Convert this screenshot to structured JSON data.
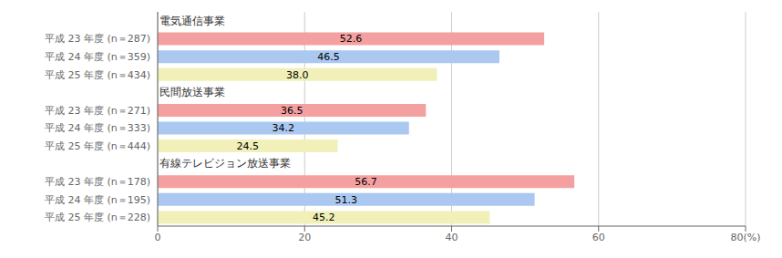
{
  "chart_data": {
    "type": "bar",
    "orientation": "horizontal",
    "groups": [
      {
        "label": "電気通信事業",
        "categories": [
          "平成 23 年度 (n＝287)",
          "平成 24 年度 (n＝359)",
          "平成 25 年度 (n＝434)"
        ],
        "values": [
          52.6,
          46.5,
          38.0
        ],
        "value_labels": [
          "52.6",
          "46.5",
          "38.0"
        ],
        "colors": [
          "#f4a0a0",
          "#aac8f0",
          "#f0f0b8"
        ]
      },
      {
        "label": "民間放送事業",
        "categories": [
          "平成 23 年度 (n＝271)",
          "平成 24 年度 (n＝333)",
          "平成 25 年度 (n＝444)"
        ],
        "values": [
          36.5,
          34.2,
          24.5
        ],
        "value_labels": [
          "36.5",
          "34.2",
          "24.5"
        ],
        "colors": [
          "#f4a0a0",
          "#aac8f0",
          "#f0f0b8"
        ]
      },
      {
        "label": "有線テレビジョン放送事業",
        "categories": [
          "平成 23 年度 (n＝178)",
          "平成 24 年度 (n＝195)",
          "平成 25 年度 (n＝228)"
        ],
        "values": [
          56.7,
          51.3,
          45.2
        ],
        "value_labels": [
          "56.7",
          "51.3",
          "45.2"
        ],
        "colors": [
          "#f4a0a0",
          "#aac8f0",
          "#f0f0b8"
        ]
      }
    ],
    "xlim": [
      0,
      80
    ],
    "xticks": [
      0,
      20,
      40,
      60,
      {
        "value": 80,
        "label": "80(%)"
      }
    ],
    "grid": true,
    "data_labels": true
  }
}
